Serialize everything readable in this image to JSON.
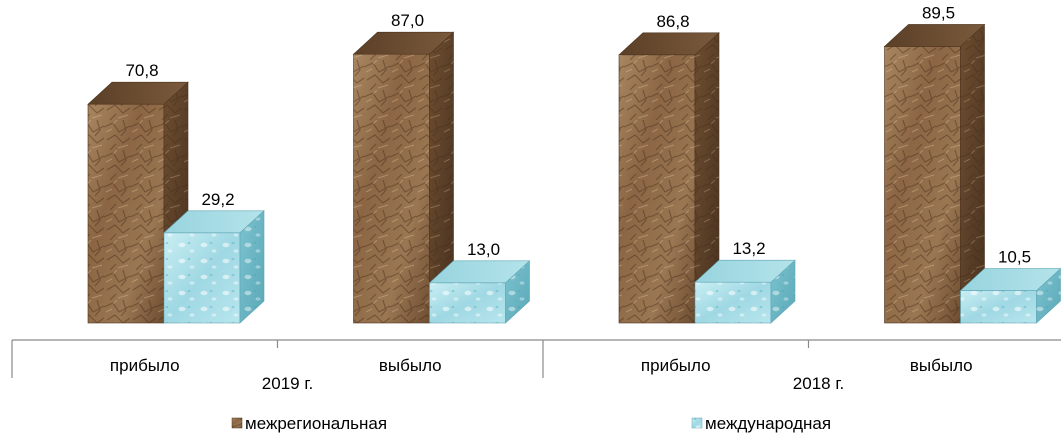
{
  "chart_data": {
    "type": "bar",
    "variant": "3d-clustered-column",
    "categories": [
      "прибыло",
      "выбыло",
      "прибыло",
      "выбыло"
    ],
    "groups": [
      {
        "label": "2019 г.",
        "categories": [
          "прибыло",
          "выбыло"
        ]
      },
      {
        "label": "2018 г.",
        "categories": [
          "прибыло",
          "выбыло"
        ]
      }
    ],
    "series": [
      {
        "name": "межрегиональная",
        "values": [
          70.8,
          87.0,
          86.8,
          89.5
        ],
        "value_labels": [
          "70,8",
          "87,0",
          "86,8",
          "89,5"
        ],
        "color": "#9c7550",
        "texture": "crumpled-paper"
      },
      {
        "name": "международная",
        "values": [
          29.2,
          13.0,
          13.2,
          10.5
        ],
        "value_labels": [
          "29,2",
          "13,0",
          "13,2",
          "10,5"
        ],
        "color": "#a9dfe8",
        "texture": "water"
      }
    ],
    "ylim": [
      0,
      100
    ],
    "grid": false,
    "legend_position": "bottom"
  }
}
